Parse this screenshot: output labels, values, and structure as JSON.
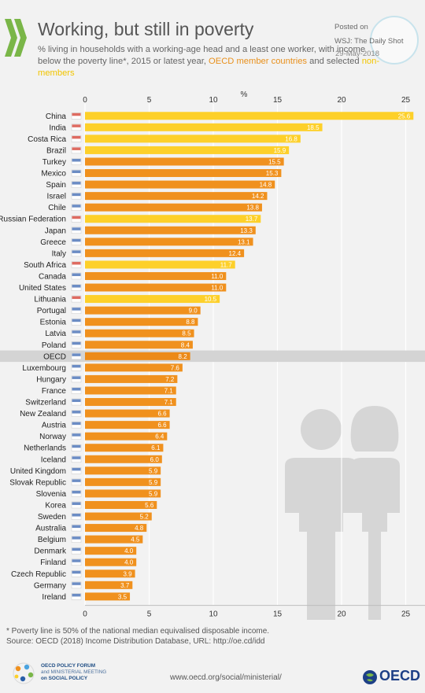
{
  "header": {
    "title": "Working, but still in poverty",
    "subtitle_main": "% living in households with a working-age head and a least one worker, with income below the poverty line*, 2015 or latest year,",
    "subtitle_oecd": "OECD member countries",
    "subtitle_and": "and selected",
    "subtitle_non": "non-members"
  },
  "stamp": {
    "posted": "Posted on",
    "source": "WSJ: The Daily Shot",
    "date": "29-May-2018"
  },
  "footer": {
    "footnote": "* Poverty line is 50% of the national median equivalised disposable income.",
    "source": "Source: OECD (2018) Income Distribution Database, URL: http://oe.cd/idd",
    "forum_line1": "OECD POLICY FORUM",
    "forum_line2": "and MINISTERIAL MEETING",
    "forum_line3": "on SOCIAL POLICY",
    "url": "www.oecd.org/social/ministerial/",
    "logo_text": "OECD"
  },
  "colors": {
    "oecd_member": "#f0911e",
    "non_member": "#fdd02a",
    "average": "#ec8a18",
    "average_band": "#d4d4d4",
    "grid": "#ffffff",
    "silhouette": "#d6d6d6"
  },
  "chart_data": {
    "type": "bar",
    "orientation": "horizontal",
    "axis_unit_label": "%",
    "xlim": [
      0,
      27
    ],
    "xticks": [
      0,
      5,
      10,
      15,
      20,
      25
    ],
    "grid": true,
    "legend": "none (color key given in subtitle)",
    "categories": [
      "China",
      "India",
      "Costa Rica",
      "Brazil",
      "Turkey",
      "Mexico",
      "Spain",
      "Israel",
      "Chile",
      "Russian Federation",
      "Japan",
      "Greece",
      "Italy",
      "South Africa",
      "Canada",
      "United States",
      "Lithuania",
      "Portugal",
      "Estonia",
      "Latvia",
      "Poland",
      "OECD",
      "Luxembourg",
      "Hungary",
      "France",
      "Switzerland",
      "New Zealand",
      "Austria",
      "Norway",
      "Netherlands",
      "Iceland",
      "United Kingdom",
      "Slovak Republic",
      "Slovenia",
      "Korea",
      "Sweden",
      "Australia",
      "Belgium",
      "Denmark",
      "Finland",
      "Czech Republic",
      "Germany",
      "Ireland"
    ],
    "values": [
      25.6,
      18.5,
      16.8,
      15.9,
      15.5,
      15.3,
      14.8,
      14.2,
      13.8,
      13.7,
      13.3,
      13.1,
      12.4,
      11.7,
      11.0,
      11.0,
      10.5,
      9.0,
      8.8,
      8.5,
      8.4,
      8.2,
      7.6,
      7.2,
      7.1,
      7.1,
      6.6,
      6.6,
      6.4,
      6.1,
      6.0,
      5.9,
      5.9,
      5.9,
      5.6,
      5.2,
      4.8,
      4.5,
      4.0,
      4.0,
      3.9,
      3.7,
      3.5
    ],
    "value_labels": [
      "25.6",
      "18.5",
      "16.8",
      "15.9",
      "15.5",
      "15.3",
      "14.8",
      "14.2",
      "13.8",
      "13.7",
      "13.3",
      "13.1",
      "12.4",
      "11.7",
      "11.0",
      "11.0",
      "10.5",
      "9.0",
      "8.8",
      "8.5",
      "8.4",
      "8.2",
      "7.6",
      "7.2",
      "7.1",
      "7.1",
      "6.6",
      "6.6",
      "6.4",
      "6.1",
      "6.0",
      "5.9",
      "5.9",
      "5.9",
      "5.6",
      "5.2",
      "4.8",
      "4.5",
      "4.0",
      "4.0",
      "3.9",
      "3.7",
      "3.5"
    ],
    "group": [
      "non-member",
      "non-member",
      "non-member",
      "non-member",
      "member",
      "member",
      "member",
      "member",
      "member",
      "non-member",
      "member",
      "member",
      "member",
      "non-member",
      "member",
      "member",
      "non-member",
      "member",
      "member",
      "member",
      "member",
      "average",
      "member",
      "member",
      "member",
      "member",
      "member",
      "member",
      "member",
      "member",
      "member",
      "member",
      "member",
      "member",
      "member",
      "member",
      "member",
      "member",
      "member",
      "member",
      "member",
      "member",
      "member"
    ]
  }
}
